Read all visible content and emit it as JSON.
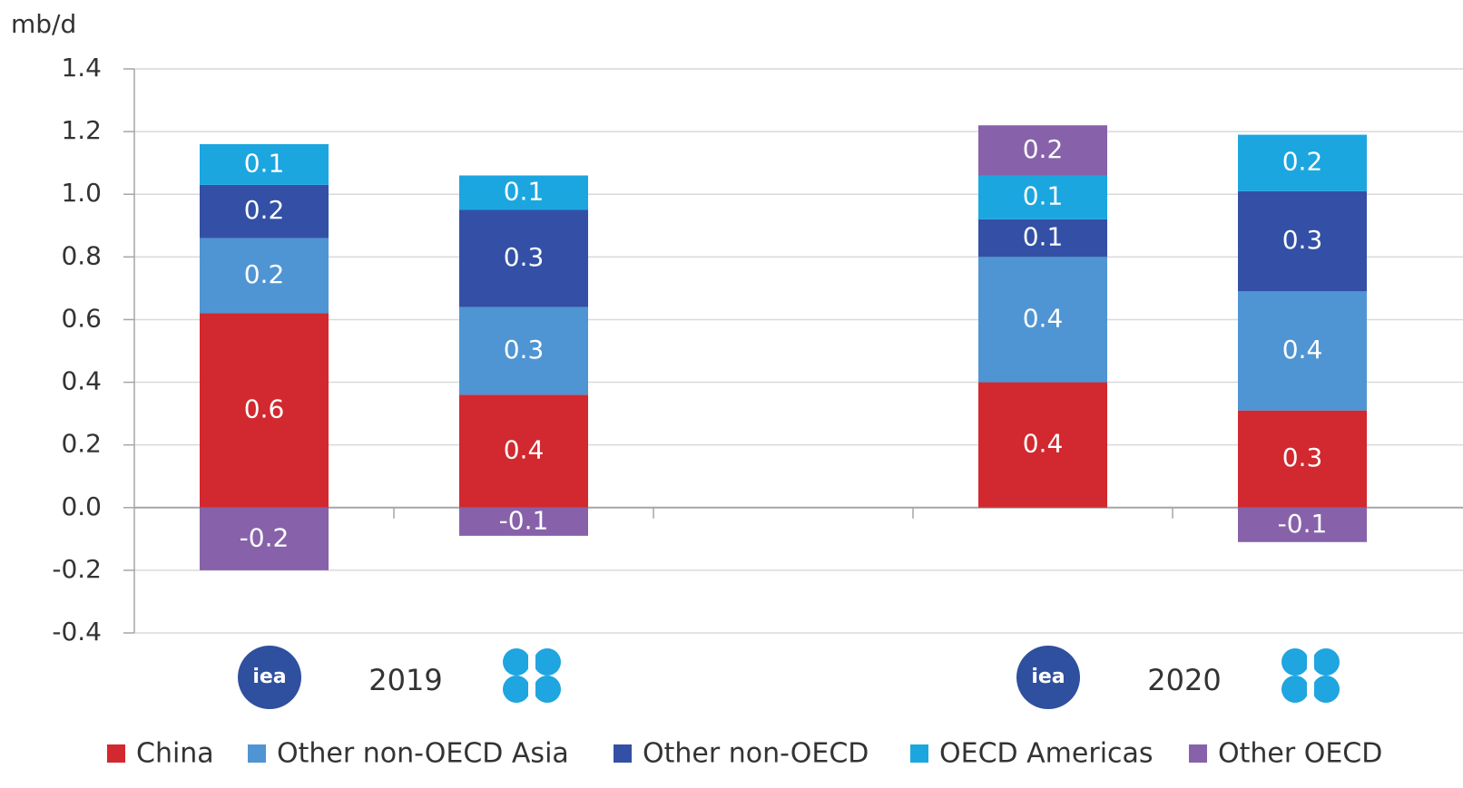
{
  "chart_data": {
    "type": "stacked_bar",
    "y_label": "mb/d",
    "groups": [
      "2019",
      "2020"
    ],
    "logo_text": "iea",
    "categories": [
      null,
      null,
      null,
      null
    ],
    "ylim": [
      -0.4,
      1.4
    ],
    "yticks": [
      1.4,
      1.2,
      {
        "value": 1.0,
        "label": "1.0"
      },
      0.8,
      0.6,
      0.4,
      0.2,
      {
        "value": 0,
        "label": "0.0"
      },
      -0.2,
      -0.4
    ],
    "grid": true,
    "legend": "bottom",
    "series": [
      {
        "name": "China",
        "color": "#d1292f",
        "values": [
          0.62,
          0.36,
          0.4,
          0.31
        ],
        "value_labels": [
          "0.6",
          "0.4",
          "0.4",
          "0.3"
        ]
      },
      {
        "name": "Other non-OECD Asia",
        "color": "#4f95d3",
        "values": [
          0.24,
          0.28,
          0.4,
          0.38
        ],
        "value_labels": [
          "0.2",
          "0.3",
          "0.4",
          "0.4"
        ]
      },
      {
        "name": "Other non-OECD",
        "color": "#3350a6",
        "values": [
          0.17,
          0.31,
          0.12,
          0.32
        ],
        "value_labels": [
          "0.2",
          "0.3",
          "0.1",
          "0.3"
        ]
      },
      {
        "name": "OECD Americas",
        "color": "#1ba6e0",
        "values": [
          0.13,
          0.11,
          0.14,
          0.18
        ],
        "value_labels": [
          "0.1",
          "0.1",
          "0.1",
          "0.2"
        ]
      },
      {
        "name": "Other OECD",
        "color": "#8762aa",
        "values": [
          -0.2,
          -0.09,
          0.16,
          -0.11
        ],
        "value_labels": [
          "-0.2",
          "-0.1",
          "0.2",
          "-0.1"
        ]
      }
    ]
  }
}
